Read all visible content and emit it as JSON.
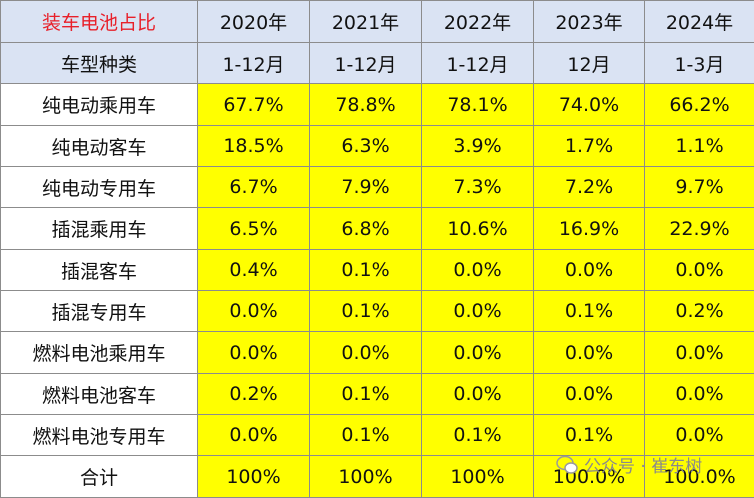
{
  "table": {
    "header": [
      "装车电池占比",
      "2020年",
      "2021年",
      "2022年",
      "2023年",
      "2024年"
    ],
    "subheader": [
      "车型种类",
      "1-12月",
      "1-12月",
      "1-12月",
      "12月",
      "1-3月"
    ],
    "rows": [
      [
        "纯电动乘用车",
        "67.7%",
        "78.8%",
        "78.1%",
        "74.0%",
        "66.2%"
      ],
      [
        "纯电动客车",
        "18.5%",
        "6.3%",
        "3.9%",
        "1.7%",
        "1.1%"
      ],
      [
        "纯电动专用车",
        "6.7%",
        "7.9%",
        "7.3%",
        "7.2%",
        "9.7%"
      ],
      [
        "插混乘用车",
        "6.5%",
        "6.8%",
        "10.6%",
        "16.9%",
        "22.9%"
      ],
      [
        "插混客车",
        "0.4%",
        "0.1%",
        "0.0%",
        "0.0%",
        "0.0%"
      ],
      [
        "插混专用车",
        "0.0%",
        "0.1%",
        "0.0%",
        "0.1%",
        "0.2%"
      ],
      [
        "燃料电池乘用车",
        "0.0%",
        "0.0%",
        "0.0%",
        "0.0%",
        "0.0%"
      ],
      [
        "燃料电池客车",
        "0.2%",
        "0.1%",
        "0.0%",
        "0.0%",
        "0.0%"
      ],
      [
        "燃料电池专用车",
        "0.0%",
        "0.1%",
        "0.1%",
        "0.1%",
        "0.0%"
      ],
      [
        "合计",
        "100%",
        "100%",
        "100%",
        "100.0%",
        "100.0%"
      ]
    ]
  },
  "watermark": "公众号 · 崔东树"
}
